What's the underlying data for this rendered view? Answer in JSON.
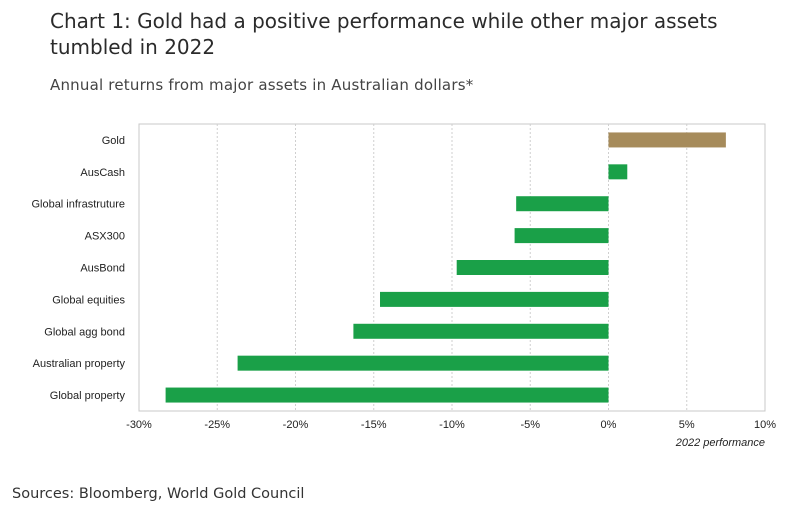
{
  "title": "Chart 1: Gold had a positive performance while other major assets tumbled in 2022",
  "subtitle": "Annual returns from major assets in Australian dollars*",
  "source": "Sources: Bloomberg, World Gold Council",
  "chart_data": {
    "type": "bar",
    "orientation": "horizontal",
    "categories": [
      "Gold",
      "AusCash",
      "Global infrastruture",
      "ASX300",
      "AusBond",
      "Global equities",
      "Global agg bond",
      "Australian property",
      "Global property"
    ],
    "values": [
      7.5,
      1.2,
      -5.9,
      -6.0,
      -9.7,
      -14.6,
      -16.3,
      -23.7,
      -28.3
    ],
    "bar_colors": [
      "#a68b5b",
      "#1aa048",
      "#1aa048",
      "#1aa048",
      "#1aa048",
      "#1aa048",
      "#1aa048",
      "#1aa048",
      "#1aa048"
    ],
    "xlabel": "2022 performance",
    "xlim": [
      -30,
      10
    ],
    "xticks": [
      -30,
      -25,
      -20,
      -15,
      -10,
      -5,
      0,
      5,
      10
    ],
    "xtick_labels": [
      "-30%",
      "-25%",
      "-20%",
      "-15%",
      "-10%",
      "-5%",
      "0%",
      "5%",
      "10%"
    ],
    "grid": "vertical dotted",
    "legend": "none"
  }
}
